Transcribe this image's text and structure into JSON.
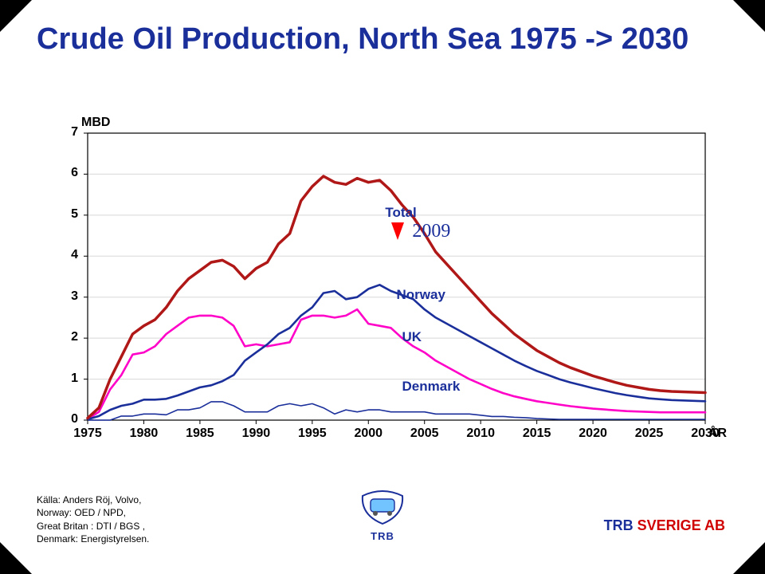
{
  "title": "Crude Oil Production, North Sea 1975 -> 2030",
  "chart": {
    "type": "line",
    "x": [
      1975,
      1976,
      1977,
      1978,
      1979,
      1980,
      1981,
      1982,
      1983,
      1984,
      1985,
      1986,
      1987,
      1988,
      1989,
      1990,
      1991,
      1992,
      1993,
      1994,
      1995,
      1996,
      1997,
      1998,
      1999,
      2000,
      2001,
      2002,
      2003,
      2004,
      2005,
      2006,
      2007,
      2008,
      2009,
      2010,
      2011,
      2012,
      2013,
      2014,
      2015,
      2016,
      2017,
      2018,
      2019,
      2020,
      2021,
      2022,
      2023,
      2024,
      2025,
      2026,
      2027,
      2028,
      2029,
      2030
    ],
    "series": {
      "total": {
        "label": "Total",
        "color": "#b01717",
        "width": 3.5,
        "values": [
          0.05,
          0.3,
          1.0,
          1.55,
          2.1,
          2.3,
          2.45,
          2.75,
          3.15,
          3.45,
          3.65,
          3.85,
          3.9,
          3.75,
          3.45,
          3.7,
          3.85,
          4.3,
          4.55,
          5.35,
          5.7,
          5.95,
          5.8,
          5.75,
          5.9,
          5.8,
          5.85,
          5.6,
          5.25,
          4.95,
          4.55,
          4.1,
          3.8,
          3.5,
          3.2,
          2.9,
          2.6,
          2.35,
          2.1,
          1.9,
          1.7,
          1.55,
          1.4,
          1.28,
          1.18,
          1.08,
          1.0,
          0.92,
          0.85,
          0.8,
          0.75,
          0.72,
          0.7,
          0.69,
          0.68,
          0.67
        ]
      },
      "norway": {
        "label": "Norway",
        "color": "#1b2f9b",
        "width": 2.6,
        "values": [
          0.02,
          0.1,
          0.25,
          0.35,
          0.4,
          0.5,
          0.5,
          0.52,
          0.6,
          0.7,
          0.8,
          0.85,
          0.95,
          1.1,
          1.45,
          1.65,
          1.85,
          2.1,
          2.25,
          2.55,
          2.75,
          3.1,
          3.15,
          2.95,
          3.0,
          3.2,
          3.3,
          3.15,
          3.05,
          2.95,
          2.7,
          2.5,
          2.35,
          2.2,
          2.05,
          1.9,
          1.75,
          1.6,
          1.45,
          1.32,
          1.2,
          1.1,
          1.0,
          0.92,
          0.85,
          0.78,
          0.72,
          0.66,
          0.61,
          0.57,
          0.53,
          0.51,
          0.49,
          0.48,
          0.47,
          0.46
        ]
      },
      "uk": {
        "label": "UK",
        "color": "#ff00c8",
        "width": 2.6,
        "values": [
          0.03,
          0.2,
          0.75,
          1.1,
          1.6,
          1.65,
          1.8,
          2.1,
          2.3,
          2.5,
          2.55,
          2.55,
          2.5,
          2.3,
          1.8,
          1.85,
          1.8,
          1.85,
          1.9,
          2.45,
          2.55,
          2.55,
          2.5,
          2.55,
          2.7,
          2.35,
          2.3,
          2.25,
          2.0,
          1.8,
          1.65,
          1.45,
          1.3,
          1.15,
          1.0,
          0.88,
          0.76,
          0.66,
          0.58,
          0.52,
          0.46,
          0.42,
          0.38,
          0.34,
          0.31,
          0.28,
          0.26,
          0.24,
          0.22,
          0.21,
          0.2,
          0.19,
          0.19,
          0.19,
          0.19,
          0.19
        ]
      },
      "denmark": {
        "label": "Denmark",
        "color": "#1b2f9b",
        "width": 1.6,
        "values": [
          0.0,
          0.0,
          0.0,
          0.1,
          0.1,
          0.15,
          0.15,
          0.13,
          0.25,
          0.25,
          0.3,
          0.45,
          0.45,
          0.35,
          0.2,
          0.2,
          0.2,
          0.35,
          0.4,
          0.35,
          0.4,
          0.3,
          0.15,
          0.25,
          0.2,
          0.25,
          0.25,
          0.2,
          0.2,
          0.2,
          0.2,
          0.15,
          0.15,
          0.15,
          0.15,
          0.12,
          0.09,
          0.09,
          0.07,
          0.06,
          0.04,
          0.03,
          0.02,
          0.02,
          0.02,
          0.02,
          0.02,
          0.02,
          0.02,
          0.02,
          0.02,
          0.02,
          0.02,
          0.02,
          0.02,
          0.02
        ]
      }
    },
    "y_axis": {
      "title": "MBD",
      "min": 0,
      "max": 7,
      "ticks": [
        0,
        1,
        2,
        3,
        4,
        5,
        6,
        7
      ],
      "label_fontsize": 16
    },
    "x_axis": {
      "title": "ÅR",
      "min": 1975,
      "max": 2030,
      "ticks": [
        1975,
        1980,
        1985,
        1990,
        1995,
        2000,
        2005,
        2010,
        2015,
        2020,
        2025,
        2030
      ],
      "label_fontsize": 16
    },
    "plot_border_color": "#000000",
    "plot_bg": "#ffffff",
    "grid_color": "#d8d8d8",
    "marker_year": 2009,
    "marker_label": "2009"
  },
  "series_label_positions": {
    "total": {
      "x": 2001.5,
      "y": 5.05
    },
    "norway": {
      "x": 2002.5,
      "y": 3.05
    },
    "uk": {
      "x": 2003.0,
      "y": 2.02
    },
    "denmark": {
      "x": 2003.0,
      "y": 0.82
    }
  },
  "source": {
    "line1": "Källa: Anders Röj, Volvo,",
    "line2": "Norway: OED / NPD,",
    "line3": "Great Britan : DTI / BGS ,",
    "line4": "Denmark: Energistyrelsen."
  },
  "footer": {
    "logo_text": "TRB",
    "right1": "TRB",
    "right2": " SVERIGE AB"
  }
}
